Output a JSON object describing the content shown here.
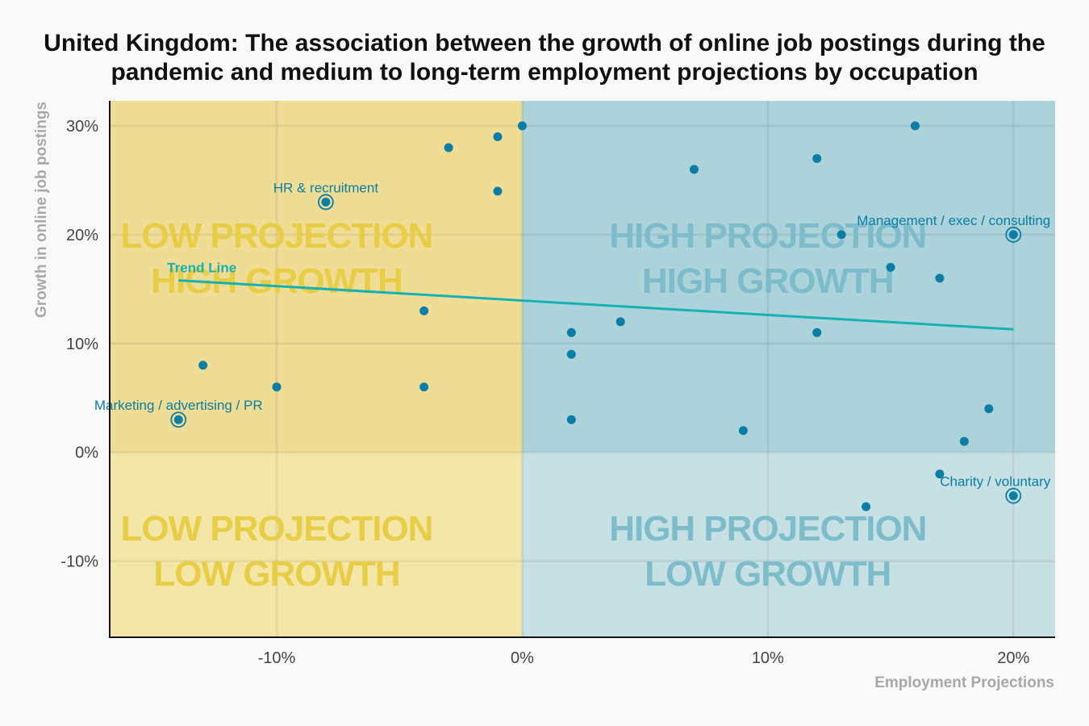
{
  "title_lines": [
    "United Kingdom: The association between the growth of online job postings during the",
    "pandemic and medium to long-term employment projections by occupation"
  ],
  "colors": {
    "q_low_high": "#efdc95",
    "q_low_low": "#f3e6a6",
    "q_high_high": "#acd2da",
    "q_high_low": "#c7e0e4",
    "quad_text_yellow": "#e8cd46",
    "quad_text_blue": "#7dbccb",
    "point": "#0a7ea4",
    "trend": "#14b1b5"
  },
  "chart_data": {
    "type": "scatter",
    "title": "United Kingdom: The association between the growth of online job postings during the pandemic and medium to long-term employment projections by occupation",
    "xlabel": "Employment Projections",
    "ylabel": "Growth in online job postings",
    "xlim": [
      -16.8,
      21.7
    ],
    "ylim": [
      -17,
      32.3
    ],
    "x_ticks": [
      -10,
      0,
      10,
      20
    ],
    "x_tick_labels": [
      "-10%",
      "0%",
      "10%",
      "20%"
    ],
    "y_ticks": [
      -10,
      0,
      10,
      20,
      30
    ],
    "y_tick_labels": [
      "-10%",
      "0%",
      "10%",
      "20%",
      "30%"
    ],
    "grid": true,
    "points": [
      {
        "x": -14,
        "y": 3,
        "label": "Marketing / advertising / PR"
      },
      {
        "x": -13,
        "y": 8
      },
      {
        "x": -10,
        "y": 6
      },
      {
        "x": -8,
        "y": 23,
        "label": "HR & recruitment"
      },
      {
        "x": -4,
        "y": 13
      },
      {
        "x": -4,
        "y": 6
      },
      {
        "x": -3,
        "y": 28
      },
      {
        "x": -1,
        "y": 29
      },
      {
        "x": -1,
        "y": 24
      },
      {
        "x": 0,
        "y": 30
      },
      {
        "x": 2,
        "y": 11
      },
      {
        "x": 2,
        "y": 9
      },
      {
        "x": 2,
        "y": 3
      },
      {
        "x": 4,
        "y": 12
      },
      {
        "x": 7,
        "y": 26
      },
      {
        "x": 9,
        "y": 2
      },
      {
        "x": 12,
        "y": 27
      },
      {
        "x": 12,
        "y": 11
      },
      {
        "x": 13,
        "y": 20
      },
      {
        "x": 14,
        "y": -5
      },
      {
        "x": 15,
        "y": 17
      },
      {
        "x": 16,
        "y": 30
      },
      {
        "x": 17,
        "y": 16
      },
      {
        "x": 17,
        "y": -2
      },
      {
        "x": 18,
        "y": 1
      },
      {
        "x": 19,
        "y": 4
      },
      {
        "x": 20,
        "y": 20,
        "label": "Management / exec / consulting"
      },
      {
        "x": 20,
        "y": -4,
        "label": "Charity / voluntary"
      }
    ],
    "trend_line": {
      "label": "Trend Line",
      "x": [
        -14,
        20
      ],
      "y": [
        15.8,
        11.3
      ]
    },
    "quadrants": [
      {
        "key": "low_high",
        "lines": [
          "LOW PROJECTION",
          "HIGH GROWTH"
        ]
      },
      {
        "key": "high_high",
        "lines": [
          "HIGH PROJECTION",
          "HIGH GROWTH"
        ]
      },
      {
        "key": "low_low",
        "lines": [
          "LOW PROJECTION",
          "LOW GROWTH"
        ]
      },
      {
        "key": "high_low",
        "lines": [
          "HIGH PROJECTION",
          "LOW GROWTH"
        ]
      }
    ]
  }
}
